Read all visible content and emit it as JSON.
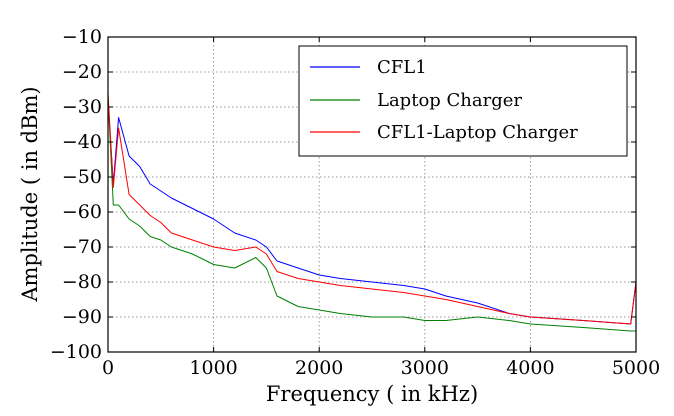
{
  "chart_data": {
    "type": "line",
    "title": "",
    "xlabel": "Frequency ( in kHz)",
    "ylabel": "Amplitude ( in dBm)",
    "xlim": [
      0,
      5000
    ],
    "ylim": [
      -100,
      -10
    ],
    "xticks": [
      0,
      1000,
      2000,
      3000,
      4000,
      5000
    ],
    "yticks": [
      -100,
      -90,
      -80,
      -70,
      -60,
      -50,
      -40,
      -30,
      -20,
      -10
    ],
    "grid": true,
    "legend": "top-right",
    "series": [
      {
        "name": "CFL1",
        "color": "#0000ff",
        "x": [
          0,
          50,
          100,
          200,
          300,
          400,
          500,
          600,
          800,
          1000,
          1200,
          1400,
          1500,
          1600,
          1800,
          2000,
          2200,
          2500,
          2800,
          3000,
          3200,
          3500,
          3800,
          4000,
          4500,
          4950,
          5000
        ],
        "y": [
          -28,
          -52,
          -33,
          -44,
          -47,
          -52,
          -54,
          -56,
          -59,
          -62,
          -66,
          -68,
          -70,
          -74,
          -76,
          -78,
          -79,
          -80,
          -81,
          -82,
          -84,
          -86,
          -89,
          -90,
          -91,
          -92,
          -80
        ]
      },
      {
        "name": "Laptop Charger",
        "color": "#008000",
        "x": [
          0,
          50,
          100,
          200,
          300,
          400,
          500,
          600,
          800,
          1000,
          1200,
          1400,
          1500,
          1600,
          1800,
          2000,
          2200,
          2500,
          2800,
          3000,
          3200,
          3500,
          3800,
          4000,
          4500,
          4950,
          5000
        ],
        "y": [
          -27,
          -58,
          -58,
          -62,
          -64,
          -67,
          -68,
          -70,
          -72,
          -75,
          -76,
          -73,
          -76,
          -84,
          -87,
          -88,
          -89,
          -90,
          -90,
          -91,
          -91,
          -90,
          -91,
          -92,
          -93,
          -94,
          -94
        ]
      },
      {
        "name": "CFL1-Laptop Charger",
        "color": "#ff0000",
        "x": [
          0,
          50,
          100,
          200,
          300,
          400,
          500,
          600,
          800,
          1000,
          1200,
          1400,
          1500,
          1600,
          1800,
          2000,
          2200,
          2500,
          2800,
          3000,
          3200,
          3500,
          3800,
          4000,
          4500,
          4950,
          5000
        ],
        "y": [
          -26,
          -53,
          -36,
          -55,
          -58,
          -61,
          -63,
          -66,
          -68,
          -70,
          -71,
          -70,
          -72,
          -77,
          -79,
          -80,
          -81,
          -82,
          -83,
          -84,
          -85,
          -87,
          -89,
          -90,
          -91,
          -92,
          -80
        ]
      }
    ]
  }
}
